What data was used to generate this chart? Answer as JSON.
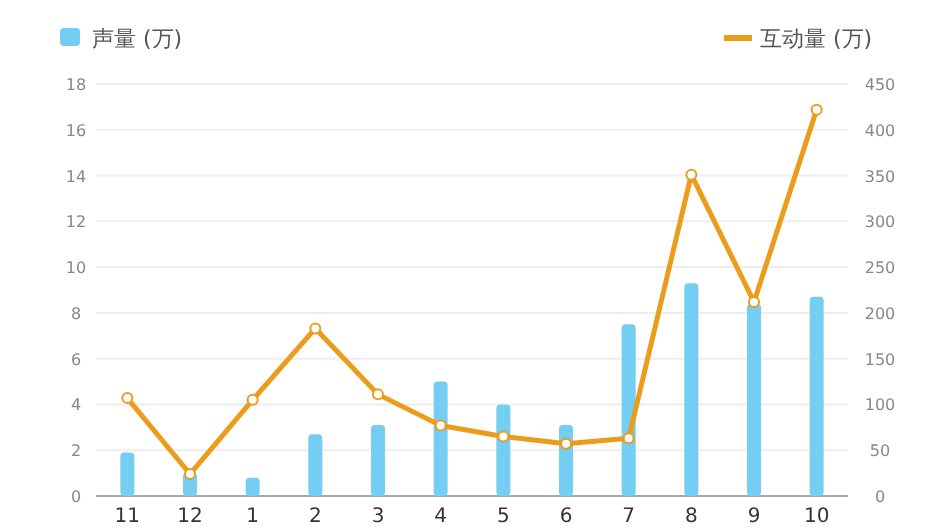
{
  "chart_data": {
    "type": "bar",
    "categories": [
      "11",
      "12",
      "1",
      "2",
      "3",
      "4",
      "5",
      "6",
      "7",
      "8",
      "9",
      "10"
    ],
    "series": [
      {
        "name": "声量 (万)",
        "color": "#74cdf2",
        "values": [
          1.9,
          1.0,
          0.8,
          2.7,
          3.1,
          5.0,
          4.0,
          3.1,
          7.5,
          9.3,
          8.4,
          8.7
        ]
      },
      {
        "name": "互动量 (万)",
        "type": "line",
        "axis": "y2",
        "color": "#eb9c1a",
        "marker": "circle",
        "values": [
          107,
          24,
          105,
          183,
          111,
          77,
          65,
          57,
          63,
          351,
          212,
          422
        ]
      }
    ],
    "ylim": [
      0,
      18
    ],
    "yticks": [
      0,
      2,
      4,
      6,
      8,
      10,
      12,
      14,
      16,
      18
    ],
    "y2lim": [
      0,
      450
    ],
    "y2ticks": [
      0,
      50,
      100,
      150,
      200,
      250,
      300,
      350,
      400,
      450
    ],
    "grid": "y",
    "legend": "top"
  }
}
